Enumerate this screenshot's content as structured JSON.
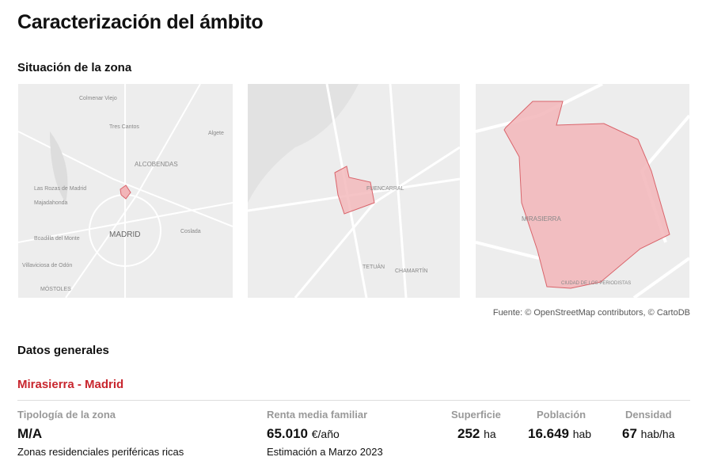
{
  "header": {
    "title": "Caracterización del ámbito"
  },
  "location": {
    "title": "Situación de la zona",
    "maps": [
      {
        "labels": [
          "Colmenar Viejo",
          "Tres Cantos",
          "Algete",
          "ALCOBENDAS",
          "Las Rozas de Madrid",
          "Majadahonda",
          "MADRID",
          "Coslada",
          "Boadilla del Monte",
          "Villaviciosa de Odón",
          "MÓSTOLES"
        ]
      },
      {
        "labels": [
          "FUENCARRAL",
          "TETUÁN",
          "CHAMARTÍN"
        ]
      },
      {
        "labels": [
          "MIRASIERRA",
          "CIUDAD DE LOS PERIODISTAS"
        ]
      }
    ],
    "source": "Fuente: © OpenStreetMap contributors, © CartoDB"
  },
  "general": {
    "title": "Datos generales",
    "place": "Mirasierra - Madrid",
    "stats": [
      {
        "label": "Tipología de la zona",
        "value": "M/A",
        "note": "Zonas residenciales periféricas ricas"
      },
      {
        "label": "Renta media familiar",
        "value": "65.010",
        "unit": "€/año",
        "note": "Estimación a Marzo 2023"
      },
      {
        "label": "Superficie",
        "value": "252",
        "unit": "ha"
      },
      {
        "label": "Población",
        "value": "16.649",
        "unit": "hab"
      },
      {
        "label": "Densidad",
        "value": "67",
        "unit": "hab/ha"
      }
    ]
  }
}
